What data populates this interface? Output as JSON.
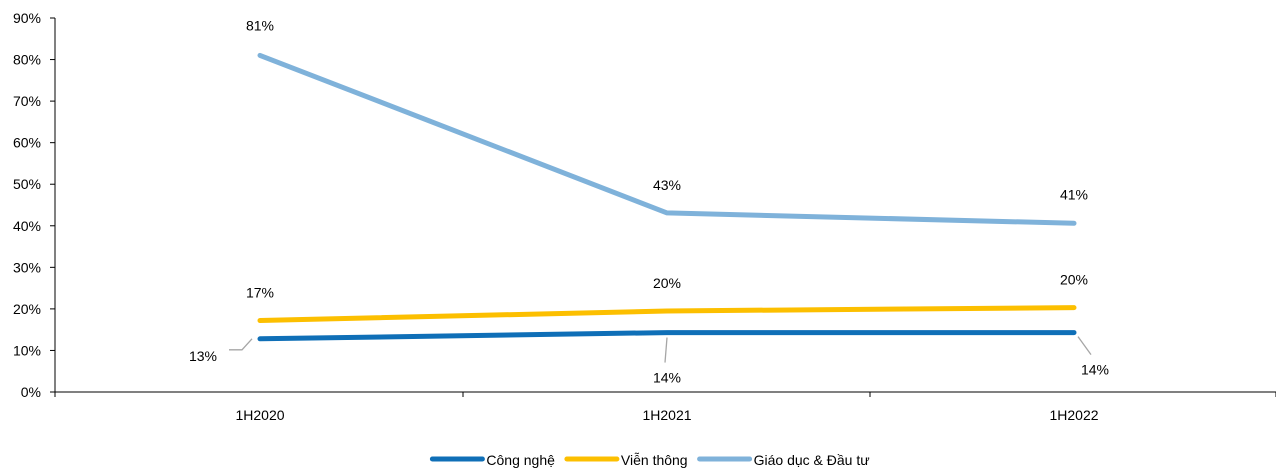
{
  "chart_data": {
    "type": "line",
    "title": "",
    "xlabel": "",
    "ylabel": "",
    "categories": [
      "1H2020",
      "1H2021",
      "1H2022"
    ],
    "ylim": [
      0,
      90
    ],
    "yticks": [
      0,
      10,
      20,
      30,
      40,
      50,
      60,
      70,
      80,
      90
    ],
    "ytick_labels": [
      "0%",
      "10%",
      "20%",
      "30%",
      "40%",
      "50%",
      "60%",
      "70%",
      "80%",
      "90%"
    ],
    "grid": false,
    "legend_position": "bottom",
    "series": [
      {
        "name": "Công nghệ",
        "color": "#0f6fb7",
        "values": [
          12.8,
          14.3,
          14.3
        ],
        "labels": [
          "13%",
          "14%",
          "14%"
        ]
      },
      {
        "name": "Viễn thông",
        "color": "#fcbf00",
        "values": [
          17.2,
          19.5,
          20.3
        ],
        "labels": [
          "17%",
          "20%",
          "20%"
        ]
      },
      {
        "name": "Giáo dục & Đầu tư",
        "color": "#7fb2da",
        "values": [
          81.0,
          43.1,
          40.6
        ],
        "labels": [
          "81%",
          "43%",
          "41%"
        ]
      }
    ]
  }
}
